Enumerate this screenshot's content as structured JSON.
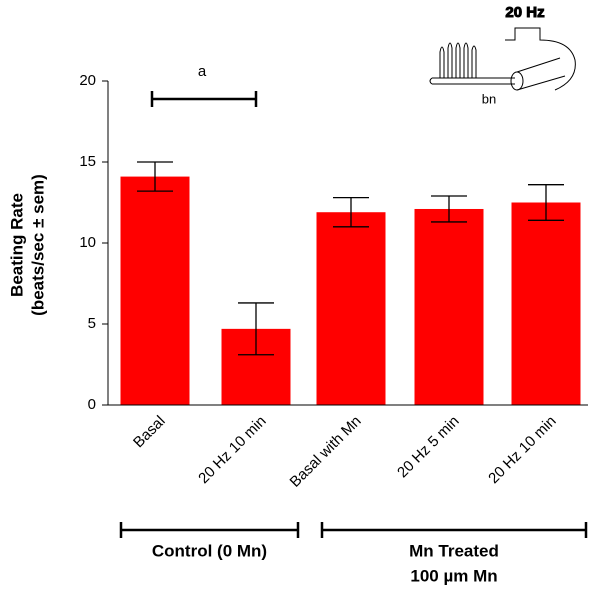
{
  "chart_data": {
    "type": "bar",
    "y_label": [
      "Beating Rate",
      "(beats/sec ± sem)"
    ],
    "categories": [
      "Basal",
      "20 Hz 10 min",
      "Basal with Mn",
      "20 Hz 5 min",
      "20 Hz 10 min"
    ],
    "values": [
      14.1,
      4.7,
      11.9,
      12.1,
      12.5
    ],
    "errors": [
      0.9,
      1.6,
      0.9,
      0.8,
      1.1
    ],
    "color": "#ff0000",
    "ylim": [
      0,
      20
    ],
    "yticks": [
      0,
      5,
      10,
      15,
      20
    ],
    "annotation": "a",
    "groups": [
      {
        "lines": [
          "Control (0 Mn)"
        ]
      },
      {
        "lines": [
          "Mn Treated",
          "100 µm Mn"
        ]
      }
    ]
  },
  "inset": {
    "pulse_label": "20 Hz",
    "nerve_label": "bn"
  }
}
